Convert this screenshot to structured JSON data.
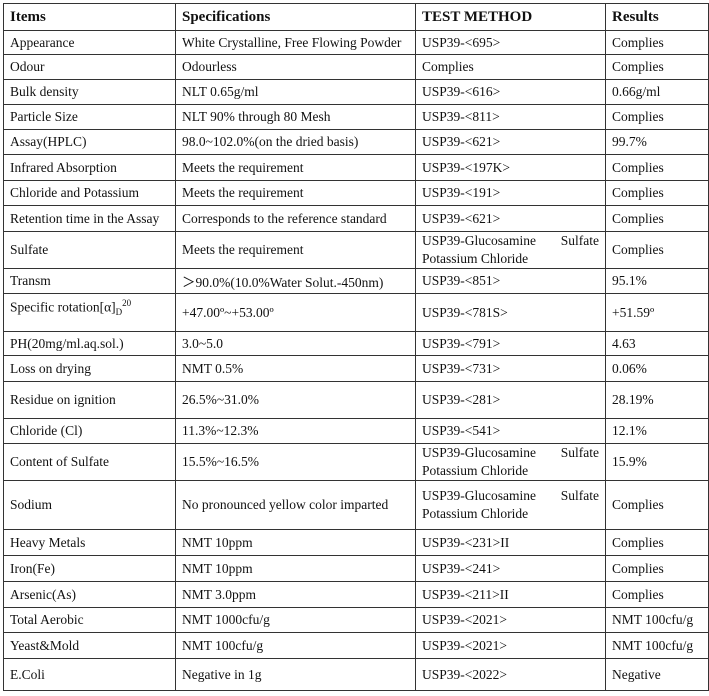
{
  "headers": [
    "Items",
    "Specifications",
    "TEST METHOD",
    "Results"
  ],
  "rows": [
    {
      "item": "Appearance",
      "spec": "White Crystalline, Free Flowing Powder",
      "method": "USP39-<695>",
      "result": "Complies"
    },
    {
      "item": "Odour",
      "spec": "Odourless",
      "method": "Complies",
      "result": "Complies"
    },
    {
      "item": "Bulk density",
      "spec": "NLT 0.65g/ml",
      "method": "USP39-<616>",
      "result": "0.66g/ml"
    },
    {
      "item": "Particle Size",
      "spec": "NLT 90% through 80 Mesh",
      "method": "USP39-<811>",
      "result": "Complies"
    },
    {
      "item": "Assay(HPLC)",
      "spec": "98.0~102.0%(on the dried basis)",
      "method": "USP39-<621>",
      "result": "99.7%"
    },
    {
      "item": "Infrared Absorption",
      "spec": "Meets the requirement",
      "method": "USP39-<197K>",
      "result": "Complies"
    },
    {
      "item": "Chloride and Potassium",
      "spec": "Meets the requirement",
      "method": "USP39-<191>",
      "result": "Complies"
    },
    {
      "item": "Retention time in the Assay",
      "spec": "Corresponds to the reference standard",
      "method": "USP39-<621>",
      "result": "Complies"
    },
    {
      "item": "Sulfate",
      "spec": "Meets the requirement",
      "method": "USP39-Glucosamine Sulfate",
      "method2": "Potassium Chloride",
      "result": "Complies"
    },
    {
      "item": "Transm",
      "spec": "＞90.0%(10.0%Water Solut.-450nm)",
      "method": "USP39-<851>",
      "result": "95.1%"
    },
    {
      "item": "Specific rotation[α]",
      "item_sub": "D",
      "item_sup": "20",
      "spec": "+47.00º~+53.00º",
      "method": "USP39-<781S>",
      "result": "+51.59º"
    },
    {
      "item": "PH(20mg/ml.aq.sol.)",
      "spec": "3.0~5.0",
      "method": "USP39-<791>",
      "result": "4.63"
    },
    {
      "item": "Loss on drying",
      "spec": "NMT 0.5%",
      "method": "USP39-<731>",
      "result": "0.06%"
    },
    {
      "item": "Residue on ignition",
      "spec": "26.5%~31.0%",
      "method": "USP39-<281>",
      "result": "28.19%"
    },
    {
      "item": "Chloride (Cl)",
      "spec": "11.3%~12.3%",
      "method": "USP39-<541>",
      "result": "12.1%"
    },
    {
      "item": "Content of Sulfate",
      "spec": "15.5%~16.5%",
      "method": "USP39-Glucosamine Sulfate",
      "method2": "Potassium Chloride",
      "result": "15.9%"
    },
    {
      "item": "Sodium",
      "spec": "No pronounced yellow color imparted",
      "method": "USP39-Glucosamine Sulfate",
      "method2": "Potassium Chloride",
      "result": "Complies"
    },
    {
      "item": "Heavy Metals",
      "spec": "NMT 10ppm",
      "method": "USP39-<231>II",
      "result": "Complies"
    },
    {
      "item": "Iron(Fe)",
      "spec": "NMT 10ppm",
      "method": "USP39-<241>",
      "result": "Complies"
    },
    {
      "item": "Arsenic(As)",
      "spec": "NMT 3.0ppm",
      "method": "USP39-<211>II",
      "result": "Complies"
    },
    {
      "item": "Total Aerobic",
      "spec": "NMT 1000cfu/g",
      "method": "USP39-<2021>",
      "result": "NMT 100cfu/g"
    },
    {
      "item": "Yeast&Mold",
      "spec": "NMT 100cfu/g",
      "method": "USP39-<2021>",
      "result": "NMT 100cfu/g"
    },
    {
      "item": "E.Coli",
      "spec": "Negative in 1g",
      "method": "USP39-<2022>",
      "result": "Negative"
    }
  ]
}
